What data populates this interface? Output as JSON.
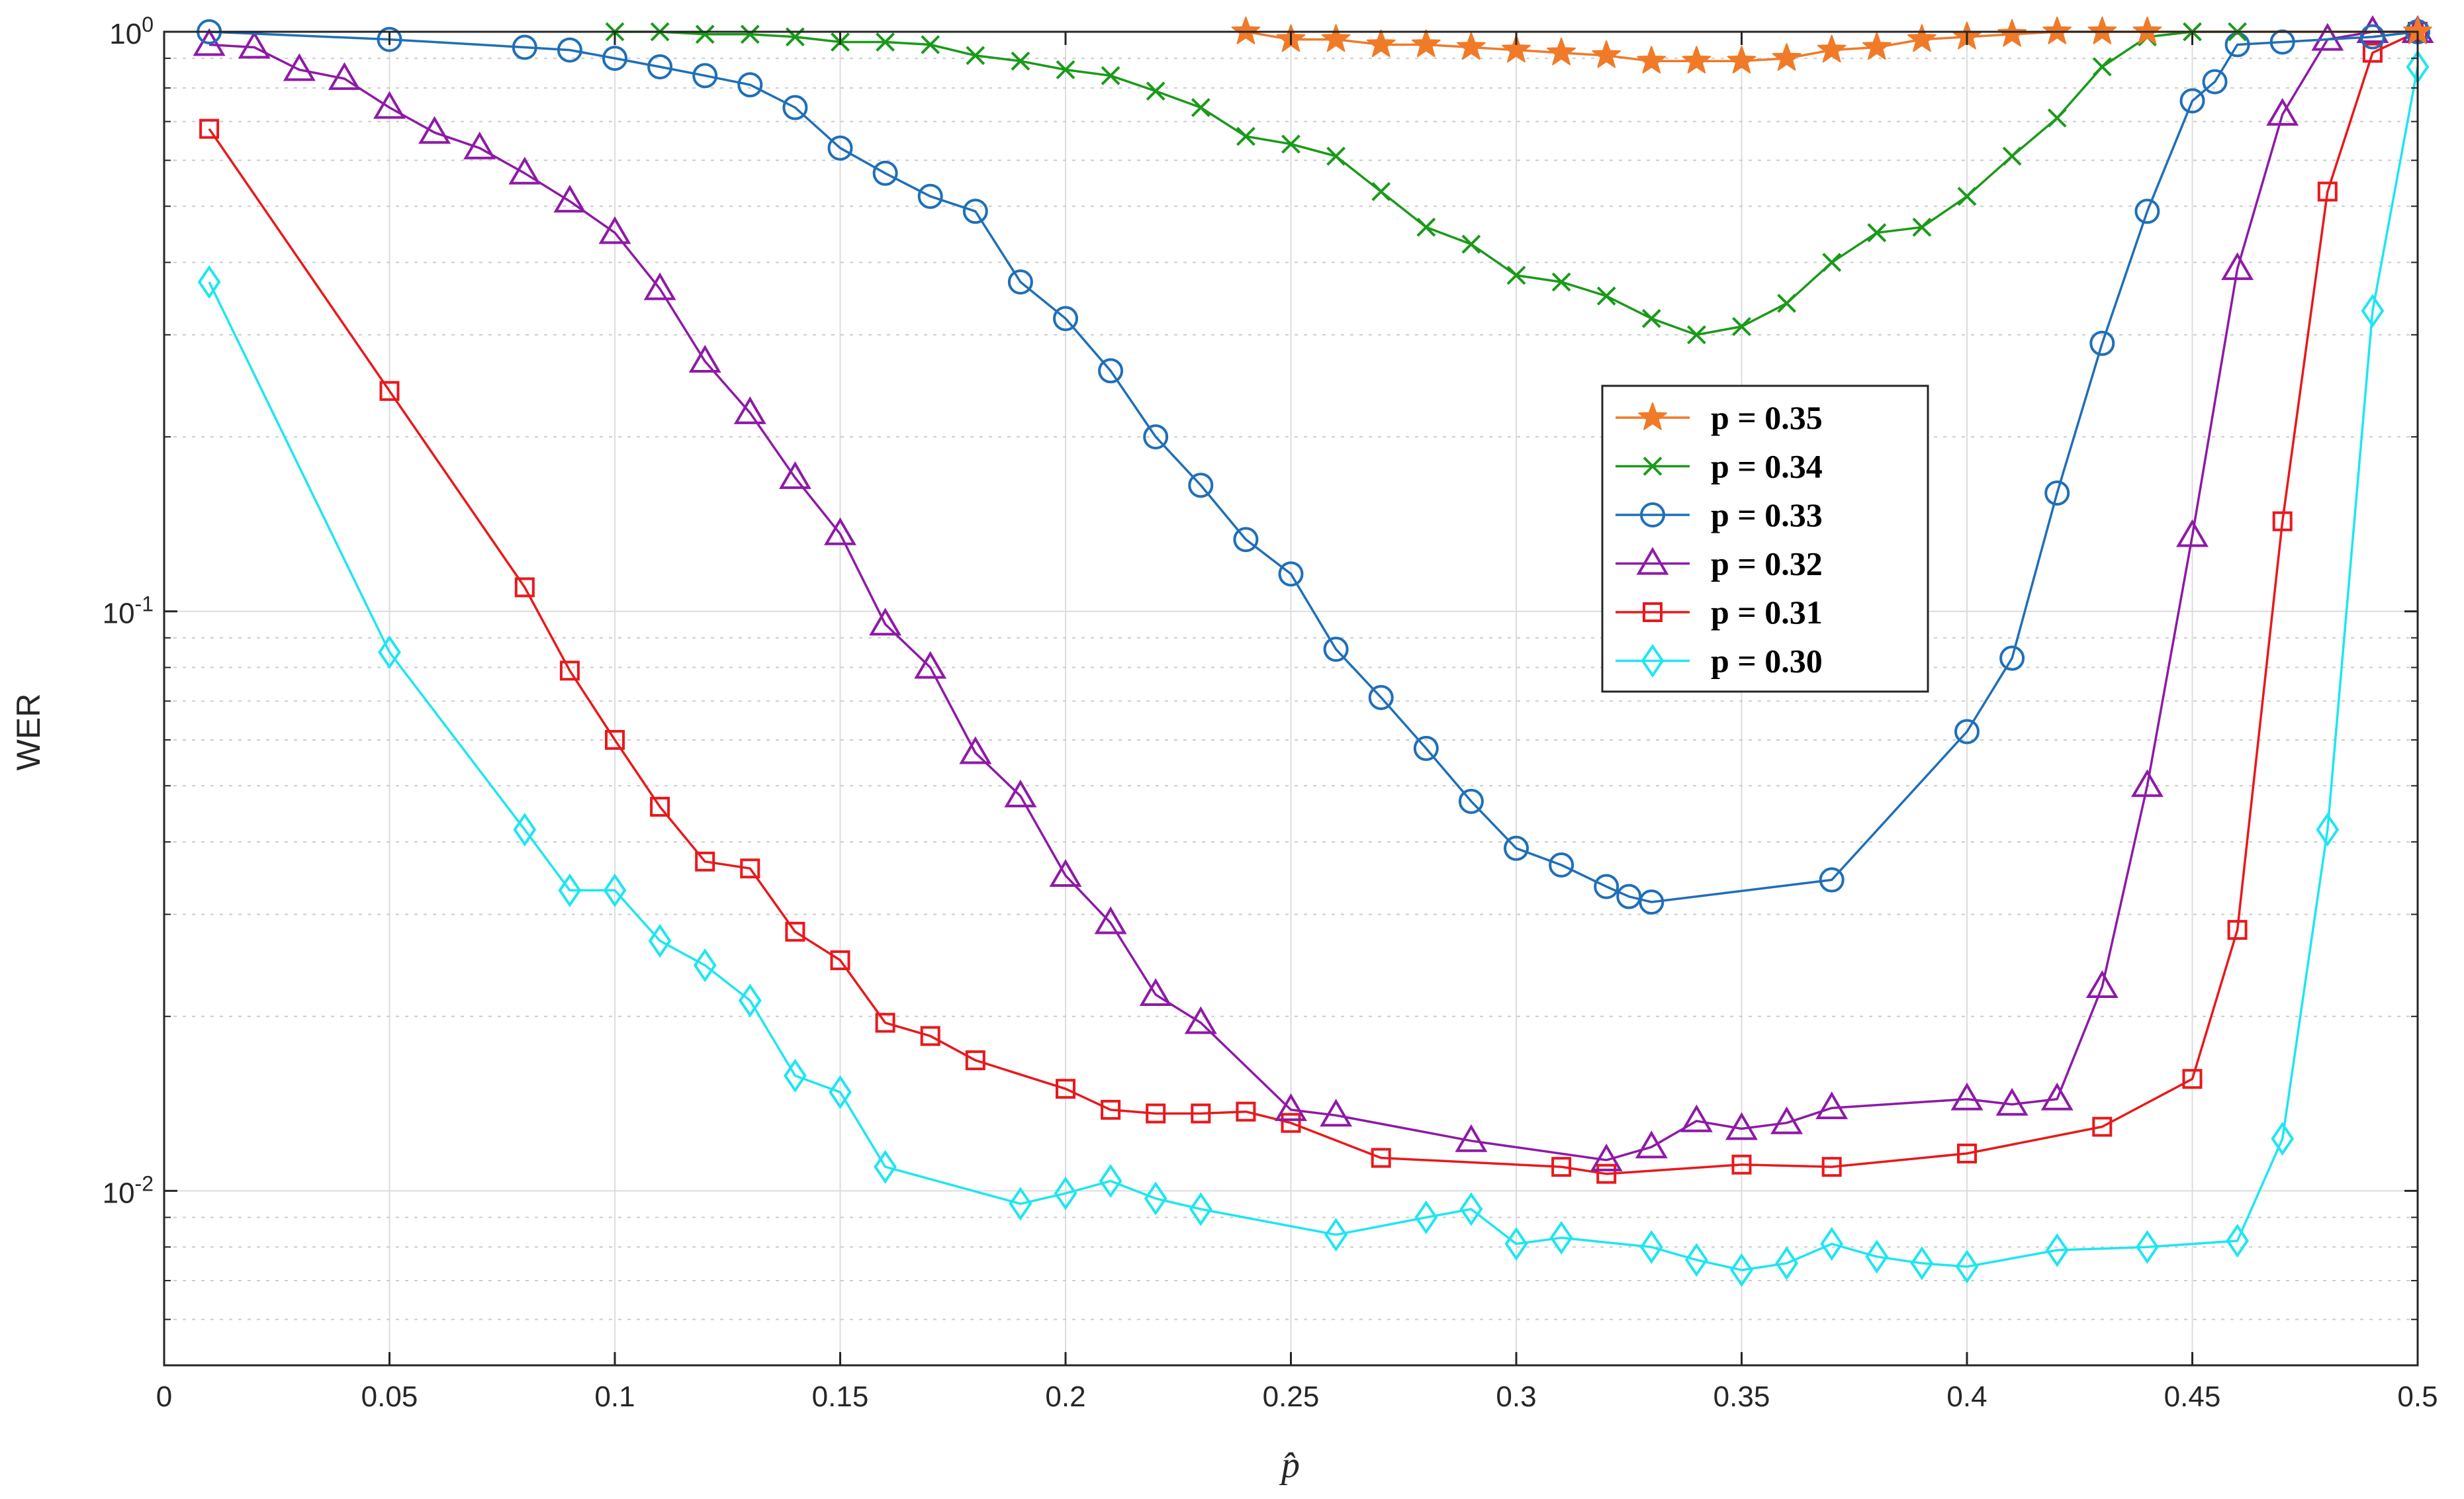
{
  "chart_data": {
    "type": "line",
    "title": "",
    "xlabel": "p̂",
    "ylabel": "WER",
    "xscale": "linear",
    "yscale": "log",
    "xlim": [
      0,
      0.5
    ],
    "ylim": [
      0.005,
      1
    ],
    "xticks": [
      0,
      0.05,
      0.1,
      0.15,
      0.2,
      0.25,
      0.3,
      0.35,
      0.4,
      0.45,
      0.5
    ],
    "xtick_labels": [
      "0",
      "0.05",
      "0.1",
      "0.15",
      "0.2",
      "0.25",
      "0.3",
      "0.35",
      "0.4",
      "0.45",
      "0.5"
    ],
    "ytick_labels": [
      {
        "base": "10",
        "exp": "-2"
      },
      {
        "base": "10",
        "exp": "-1"
      },
      {
        "base": "10",
        "exp": "0"
      }
    ],
    "grid": true,
    "legend_position": "center-right",
    "series": [
      {
        "name": "p = 0.35",
        "color": "#f07a28",
        "marker": "star",
        "x": [
          0.24,
          0.25,
          0.26,
          0.27,
          0.28,
          0.29,
          0.3,
          0.31,
          0.32,
          0.33,
          0.34,
          0.35,
          0.36,
          0.37,
          0.38,
          0.39,
          0.4,
          0.41,
          0.42,
          0.43,
          0.44,
          0.5
        ],
        "y": [
          1.0,
          0.97,
          0.97,
          0.95,
          0.95,
          0.94,
          0.93,
          0.92,
          0.91,
          0.89,
          0.89,
          0.89,
          0.9,
          0.93,
          0.94,
          0.97,
          0.98,
          0.99,
          1.0,
          1.0,
          1.0,
          1.0
        ]
      },
      {
        "name": "p = 0.34",
        "color": "#1a9a1a",
        "marker": "x",
        "x": [
          0.1,
          0.11,
          0.12,
          0.13,
          0.14,
          0.15,
          0.16,
          0.17,
          0.18,
          0.19,
          0.2,
          0.21,
          0.22,
          0.23,
          0.24,
          0.25,
          0.26,
          0.27,
          0.28,
          0.29,
          0.3,
          0.31,
          0.32,
          0.33,
          0.34,
          0.35,
          0.36,
          0.37,
          0.38,
          0.39,
          0.4,
          0.41,
          0.42,
          0.43,
          0.44,
          0.45,
          0.46
        ],
        "y": [
          1.0,
          1.0,
          0.99,
          0.99,
          0.98,
          0.96,
          0.96,
          0.95,
          0.91,
          0.89,
          0.86,
          0.84,
          0.79,
          0.74,
          0.66,
          0.64,
          0.61,
          0.53,
          0.46,
          0.43,
          0.38,
          0.37,
          0.35,
          0.32,
          0.3,
          0.31,
          0.34,
          0.4,
          0.45,
          0.46,
          0.52,
          0.61,
          0.71,
          0.87,
          0.98,
          1.0,
          1.0
        ]
      },
      {
        "name": "p = 0.33",
        "color": "#1f6fb8",
        "marker": "circle",
        "x": [
          0.01,
          0.05,
          0.08,
          0.09,
          0.1,
          0.11,
          0.12,
          0.13,
          0.14,
          0.15,
          0.16,
          0.17,
          0.18,
          0.19,
          0.2,
          0.21,
          0.22,
          0.23,
          0.24,
          0.25,
          0.26,
          0.27,
          0.28,
          0.29,
          0.3,
          0.31,
          0.32,
          0.325,
          0.33,
          0.37,
          0.4,
          0.41,
          0.42,
          0.43,
          0.44,
          0.45,
          0.455,
          0.46,
          0.47,
          0.49,
          0.5
        ],
        "y": [
          1.0,
          0.97,
          0.94,
          0.93,
          0.9,
          0.87,
          0.84,
          0.81,
          0.74,
          0.63,
          0.57,
          0.52,
          0.49,
          0.37,
          0.32,
          0.26,
          0.2,
          0.165,
          0.133,
          0.116,
          0.086,
          0.071,
          0.058,
          0.047,
          0.039,
          0.0365,
          0.0335,
          0.0322,
          0.0315,
          0.0344,
          0.062,
          0.083,
          0.16,
          0.29,
          0.49,
          0.76,
          0.82,
          0.95,
          0.96,
          0.98,
          1.0
        ]
      },
      {
        "name": "p = 0.32",
        "color": "#8e1aa6",
        "marker": "triangle",
        "x": [
          0.01,
          0.02,
          0.03,
          0.04,
          0.05,
          0.06,
          0.07,
          0.08,
          0.09,
          0.1,
          0.11,
          0.12,
          0.13,
          0.14,
          0.15,
          0.16,
          0.17,
          0.18,
          0.19,
          0.2,
          0.21,
          0.22,
          0.23,
          0.25,
          0.26,
          0.29,
          0.32,
          0.33,
          0.34,
          0.35,
          0.36,
          0.37,
          0.4,
          0.41,
          0.42,
          0.43,
          0.44,
          0.45,
          0.46,
          0.47,
          0.48,
          0.49,
          0.5
        ],
        "y": [
          0.95,
          0.94,
          0.86,
          0.83,
          0.74,
          0.67,
          0.63,
          0.57,
          0.51,
          0.45,
          0.36,
          0.27,
          0.22,
          0.17,
          0.136,
          0.095,
          0.08,
          0.057,
          0.048,
          0.035,
          0.029,
          0.0218,
          0.0195,
          0.0138,
          0.0135,
          0.0122,
          0.0113,
          0.0119,
          0.0132,
          0.0128,
          0.0131,
          0.0139,
          0.0144,
          0.0141,
          0.0144,
          0.0225,
          0.05,
          0.135,
          0.39,
          0.72,
          0.97,
          1.0,
          1.0
        ]
      },
      {
        "name": "p = 0.31",
        "color": "#e8191c",
        "marker": "square",
        "x": [
          0.01,
          0.05,
          0.08,
          0.09,
          0.1,
          0.11,
          0.12,
          0.13,
          0.14,
          0.15,
          0.16,
          0.17,
          0.18,
          0.2,
          0.21,
          0.22,
          0.23,
          0.24,
          0.25,
          0.27,
          0.31,
          0.32,
          0.35,
          0.37,
          0.4,
          0.43,
          0.45,
          0.46,
          0.47,
          0.48,
          0.49,
          0.5
        ],
        "y": [
          0.68,
          0.24,
          0.11,
          0.079,
          0.06,
          0.046,
          0.037,
          0.036,
          0.028,
          0.025,
          0.0195,
          0.0185,
          0.0168,
          0.015,
          0.0138,
          0.0136,
          0.0136,
          0.0137,
          0.0131,
          0.0114,
          0.011,
          0.0107,
          0.0111,
          0.011,
          0.0116,
          0.0129,
          0.0156,
          0.0282,
          0.143,
          0.53,
          0.92,
          1.0
        ]
      },
      {
        "name": "p = 0.30",
        "color": "#1ee6f0",
        "marker": "diamond",
        "x": [
          0.01,
          0.05,
          0.08,
          0.09,
          0.1,
          0.11,
          0.12,
          0.13,
          0.14,
          0.15,
          0.16,
          0.19,
          0.2,
          0.21,
          0.22,
          0.23,
          0.26,
          0.28,
          0.29,
          0.3,
          0.31,
          0.33,
          0.34,
          0.35,
          0.36,
          0.37,
          0.38,
          0.39,
          0.4,
          0.42,
          0.44,
          0.46,
          0.47,
          0.48,
          0.49,
          0.5
        ],
        "y": [
          0.37,
          0.085,
          0.042,
          0.033,
          0.033,
          0.027,
          0.0245,
          0.0213,
          0.0158,
          0.0148,
          0.011,
          0.0095,
          0.0099,
          0.0104,
          0.0097,
          0.0093,
          0.0084,
          0.009,
          0.0093,
          0.0081,
          0.0083,
          0.008,
          0.0076,
          0.0073,
          0.0075,
          0.0081,
          0.0077,
          0.0075,
          0.0074,
          0.0079,
          0.008,
          0.0082,
          0.0123,
          0.042,
          0.33,
          0.87
        ]
      }
    ]
  }
}
